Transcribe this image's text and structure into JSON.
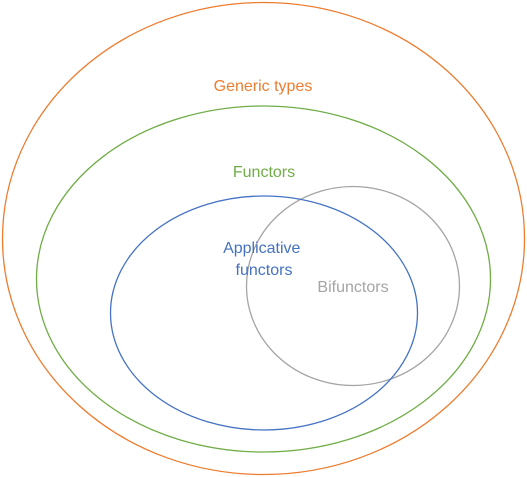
{
  "diagram": {
    "sets": [
      {
        "id": "generic-types",
        "label_lines": [
          "Generic types"
        ],
        "color": "#ED7D31"
      },
      {
        "id": "functors",
        "label_lines": [
          "Functors"
        ],
        "color": "#70AD47"
      },
      {
        "id": "applicative-functors",
        "label_lines": [
          "Applicative",
          "functors"
        ],
        "color": "#4472C4"
      },
      {
        "id": "bifunctors",
        "label_lines": [
          "Bifunctors"
        ],
        "color": "#A5A5A5"
      }
    ],
    "relations": [
      "functors is a subset of generic-types",
      "applicative-functors is a subset of functors",
      "bifunctors is a subset of functors",
      "applicative-functors overlaps bifunctors"
    ]
  }
}
